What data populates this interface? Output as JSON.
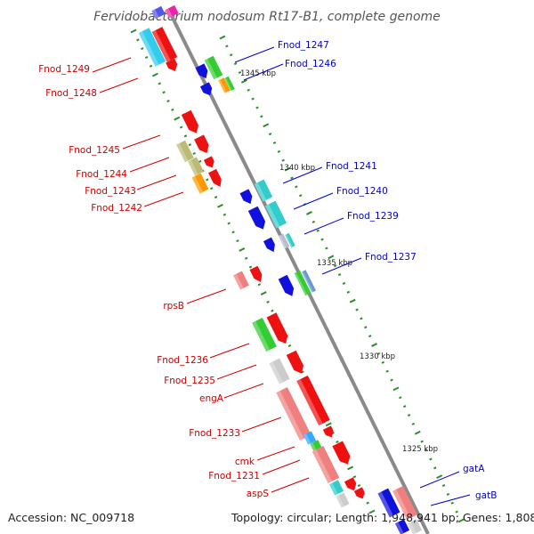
{
  "title": "Fervidobacterium nodosum Rt17-B1, complete genome",
  "accession_text": "Accession: NC_009718",
  "topology_text": "Topology: circular; Length: 1,948,941 bp; Genes: 1,808",
  "colors": {
    "backbone": "#8a8a8a",
    "tick": "#2e8b2e",
    "left_label": "#cc0000",
    "right_label": "#0000cc"
  },
  "scale_labels": [
    "1345 kbp",
    "1340 kbp",
    "1335 kbp",
    "1330 kbp",
    "1325 kbp"
  ],
  "left_labels": [
    "Fnod_1249",
    "Fnod_1248",
    "Fnod_1245",
    "Fnod_1244",
    "Fnod_1243",
    "Fnod_1242",
    "rpsB",
    "Fnod_1236",
    "Fnod_1235",
    "engA",
    "Fnod_1233",
    "cmk",
    "Fnod_1231",
    "aspS"
  ],
  "right_labels": [
    "Fnod_1247",
    "Fnod_1246",
    "Fnod_1241",
    "Fnod_1240",
    "Fnod_1239",
    "Fnod_1237",
    "gatA",
    "gatB"
  ]
}
